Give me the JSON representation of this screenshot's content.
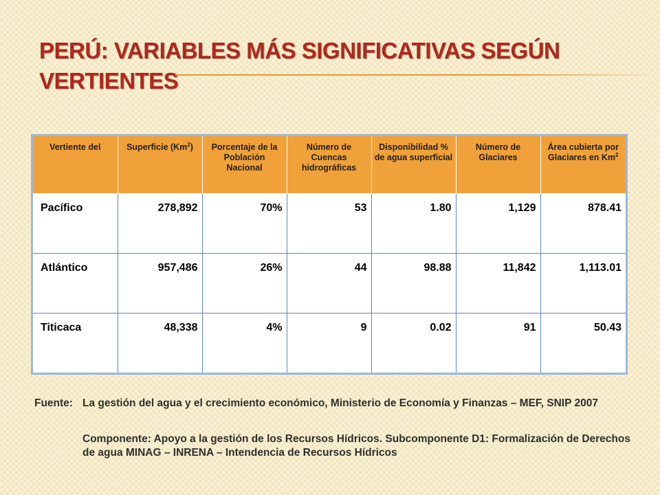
{
  "slide": {
    "title": "PERÚ: VARIABLES MÁS SIGNIFICATIVAS SEGÚN VERTIENTES"
  },
  "table": {
    "headers": [
      {
        "text": "Vertiente del",
        "sup": "",
        "suffix": ""
      },
      {
        "text": "Superficie (Km",
        "sup": "2",
        "suffix": ")"
      },
      {
        "text": "Porcentaje de la Población Nacional",
        "sup": "",
        "suffix": ""
      },
      {
        "text": "Número de Cuencas hidrográficas",
        "sup": "",
        "suffix": ""
      },
      {
        "text": "Disponibilidad % de agua superficial",
        "sup": "",
        "suffix": ""
      },
      {
        "text": "Número de Glaciares",
        "sup": "",
        "suffix": ""
      },
      {
        "text": "Área cubierta por Glaciares en Km",
        "sup": "2",
        "suffix": ""
      }
    ],
    "rows": [
      [
        "Pacífico",
        "278,892",
        "70%",
        "53",
        "1.80",
        "1,129",
        "878.41"
      ],
      [
        "Atlántico",
        "957,486",
        "26%",
        "44",
        "98.88",
        "11,842",
        "1,113.01"
      ],
      [
        "Titicaca",
        "48,338",
        "4%",
        "9",
        "0.02",
        "91",
        "50.43"
      ]
    ]
  },
  "source": {
    "label": "Fuente:",
    "line1": "La gestión del agua y el crecimiento económico, Ministerio de Economía y Finanzas – MEF, SNIP 2007",
    "line2": "Componente: Apoyo a la gestión de los Recursos Hídricos. Subcomponente D1: Formalización de Derechos de agua MINAG – INRENA – Intendencia de Recursos Hídricos"
  },
  "colors": {
    "title": "#b0271c",
    "header_fill": "#f0a13a",
    "table_border": "#9ab7e0",
    "grid_line": "#5a86c8"
  }
}
